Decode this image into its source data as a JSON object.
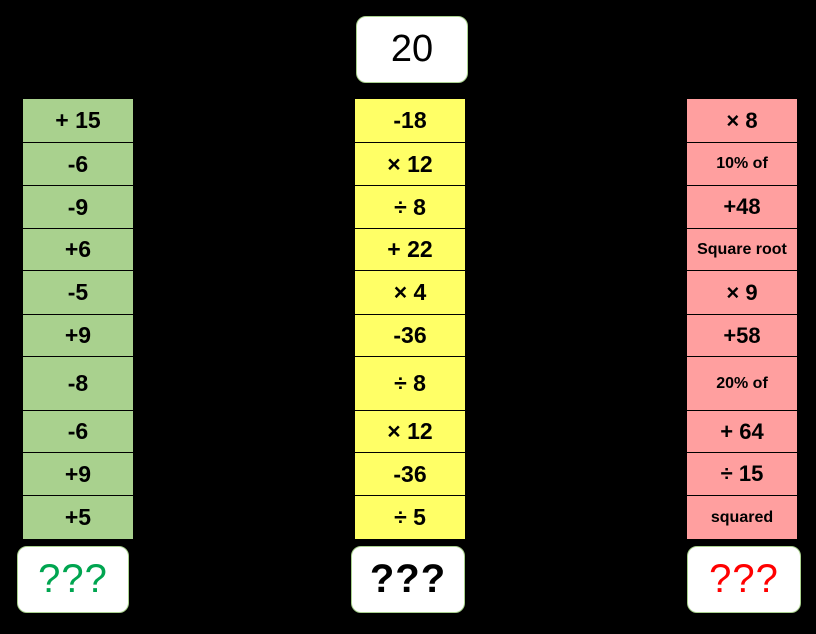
{
  "start": "20",
  "green": {
    "color": "#a9d18e",
    "items": [
      "+ 15",
      "-6",
      "-9",
      "+6",
      "-5",
      "+9",
      "-8",
      "-6",
      "+9",
      "+5"
    ],
    "answer": "???",
    "answer_color": "#00a550"
  },
  "yellow": {
    "color": "#ffff66",
    "items": [
      "-18",
      "× 12",
      "÷ 8",
      "+ 22",
      "× 4",
      "-36",
      "÷ 8",
      "× 12",
      "-36",
      "÷ 5"
    ],
    "answer": "???",
    "answer_color": "#000000"
  },
  "red": {
    "color": "#ff9f9f",
    "items": [
      "× 8",
      "10%  of",
      "+48",
      "Square root",
      "× 9",
      "+58",
      "20%  of",
      "+ 64",
      "÷ 15",
      "squared"
    ],
    "answer": "???",
    "answer_color": "#ff0000"
  }
}
